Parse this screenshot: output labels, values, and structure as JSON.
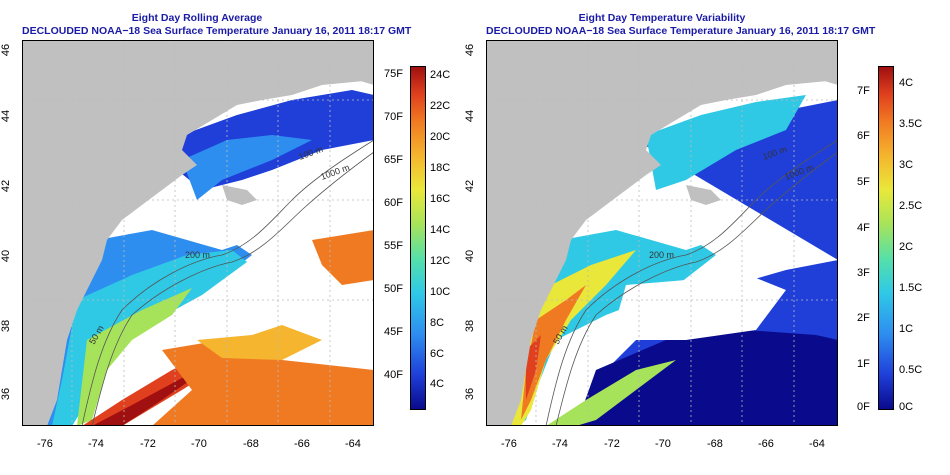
{
  "left_panel": {
    "title_line1": "Eight Day Rolling Average",
    "title_line2": "DECLOUDED NOAA−18 Sea Surface Temperature January 16, 2011 18:17 GMT",
    "contour_labels": [
      "100 m",
      "1000 m",
      "200 m",
      "50 m"
    ],
    "colorbar": {
      "fahrenheit": [
        "75F",
        "70F",
        "65F",
        "60F",
        "55F",
        "50F",
        "45F",
        "40F"
      ],
      "celsius": [
        "24C",
        "22C",
        "20C",
        "18C",
        "16C",
        "14C",
        "12C",
        "10C",
        "8C",
        "6C",
        "4C"
      ],
      "colors": [
        "#0a0a8c",
        "#1f3fd8",
        "#2e8ef0",
        "#2fc9e6",
        "#56e0a8",
        "#a7e35a",
        "#e9e83a",
        "#f5b52e",
        "#f07a22",
        "#e0401e",
        "#a01010"
      ]
    }
  },
  "right_panel": {
    "title_line1": "Eight Day Temperature Variability",
    "title_line2": "DECLOUDED NOAA−18 Sea Surface Temperature January 16, 2011 18:17 GMT",
    "contour_labels": [
      "100 m",
      "1000 m",
      "200 m",
      "50 m"
    ],
    "colorbar": {
      "fahrenheit": [
        "7F",
        "6F",
        "5F",
        "4F",
        "3F",
        "2F",
        "1F",
        "0F"
      ],
      "celsius": [
        "4C",
        "3.5C",
        "3C",
        "2.5C",
        "2C",
        "1.5C",
        "1C",
        "0.5C",
        "0C"
      ],
      "colors": [
        "#0a0a8c",
        "#1f3fd8",
        "#2e8ef0",
        "#2fc9e6",
        "#56e0a8",
        "#a7e35a",
        "#e9e83a",
        "#f5b52e",
        "#f07a22",
        "#e0401e",
        "#a01010"
      ]
    }
  },
  "axes": {
    "x_ticks": [
      "-76",
      "-74",
      "-72",
      "-70",
      "-68",
      "-66",
      "-64"
    ],
    "y_ticks": [
      "46",
      "44",
      "42",
      "40",
      "38",
      "36"
    ]
  },
  "colors": {
    "land": "#c0c0c0",
    "water_nodata": "#ffffff",
    "title": "#1a1aa6"
  }
}
